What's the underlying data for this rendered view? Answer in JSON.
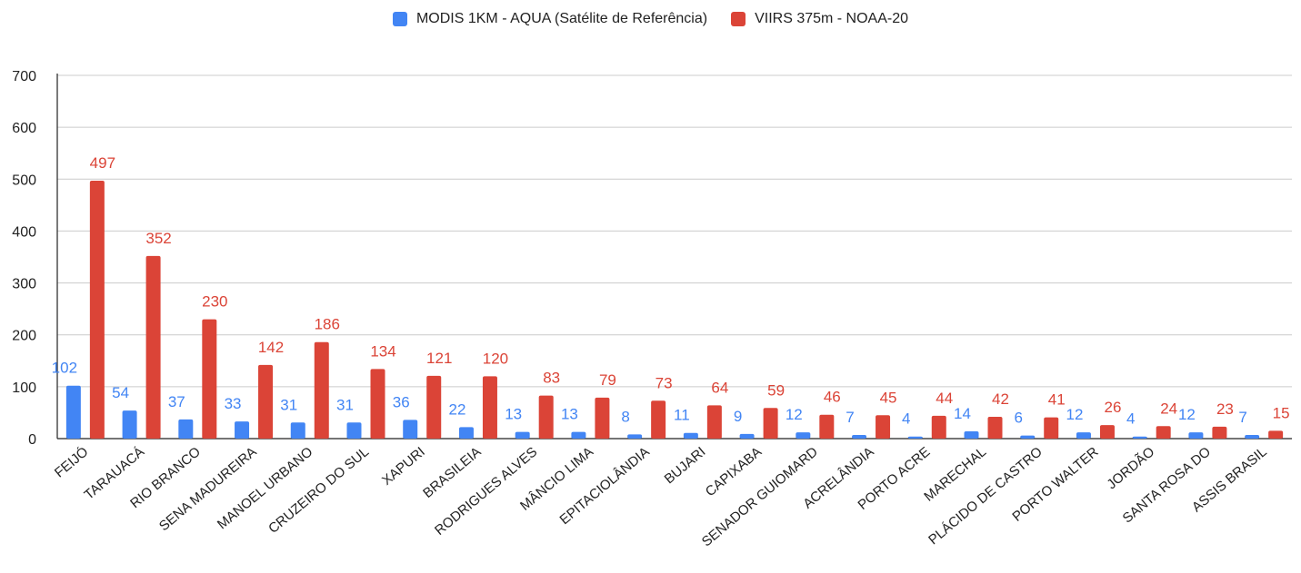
{
  "chart_data": {
    "type": "bar",
    "title": "",
    "xlabel": "",
    "ylabel": "",
    "ylim": [
      0,
      700
    ],
    "yticks": [
      0,
      100,
      200,
      300,
      400,
      500,
      600,
      700
    ],
    "grid": true,
    "legend_position": "top-center",
    "categories": [
      "FEIJÓ",
      "TARAUACÁ",
      "RIO BRANCO",
      "SENA MADUREIRA",
      "MANOEL URBANO",
      "CRUZEIRO DO SUL",
      "XAPURI",
      "BRASILEIA",
      "RODRIGUES ALVES",
      "MÂNCIO LIMA",
      "EPITACIOLÂNDIA",
      "BUJARI",
      "CAPIXABA",
      "SENADOR GUIOMARD",
      "ACRELÂNDIA",
      "PORTO ACRE",
      "MARECHAL",
      "PLÁCIDO DE CASTRO",
      "PORTO WALTER",
      "JORDÃO",
      "SANTA ROSA DO",
      "ASSIS BRASIL"
    ],
    "series": [
      {
        "name": "MODIS 1KM - AQUA (Satélite de Referência)",
        "color": "#4285f4",
        "values": [
          102,
          54,
          37,
          33,
          31,
          31,
          36,
          22,
          13,
          13,
          8,
          11,
          9,
          12,
          7,
          4,
          14,
          6,
          12,
          4,
          12,
          7
        ]
      },
      {
        "name": "VIIRS 375m - NOAA-20",
        "color": "#db4437",
        "values": [
          497,
          352,
          230,
          142,
          186,
          134,
          121,
          120,
          83,
          79,
          73,
          64,
          59,
          46,
          45,
          44,
          42,
          41,
          26,
          24,
          23,
          15
        ]
      }
    ]
  }
}
